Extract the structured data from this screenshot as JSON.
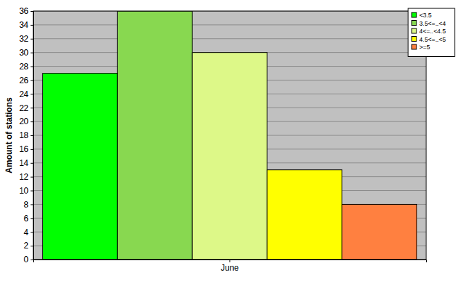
{
  "chart_data": {
    "type": "bar",
    "ylabel": "Amount of stations",
    "categories": [
      "June"
    ],
    "series": [
      {
        "name": "<3.5",
        "color": "#00ff00",
        "values": [
          27
        ]
      },
      {
        "name": "3.5<=..<4",
        "color": "#88d850",
        "values": [
          36
        ]
      },
      {
        "name": "4<=..<4.5",
        "color": "#ddf888",
        "values": [
          30
        ]
      },
      {
        "name": "4.5<=..<5",
        "color": "#ffff00",
        "values": [
          13
        ]
      },
      {
        "name": ">=5",
        "color": "#ff8040",
        "values": [
          8
        ]
      }
    ],
    "ylim": [
      0,
      36
    ],
    "yticks": [
      0,
      2,
      4,
      6,
      8,
      10,
      12,
      14,
      16,
      18,
      20,
      22,
      24,
      26,
      28,
      30,
      32,
      34,
      36
    ],
    "grid": true,
    "legend": "top-right"
  }
}
